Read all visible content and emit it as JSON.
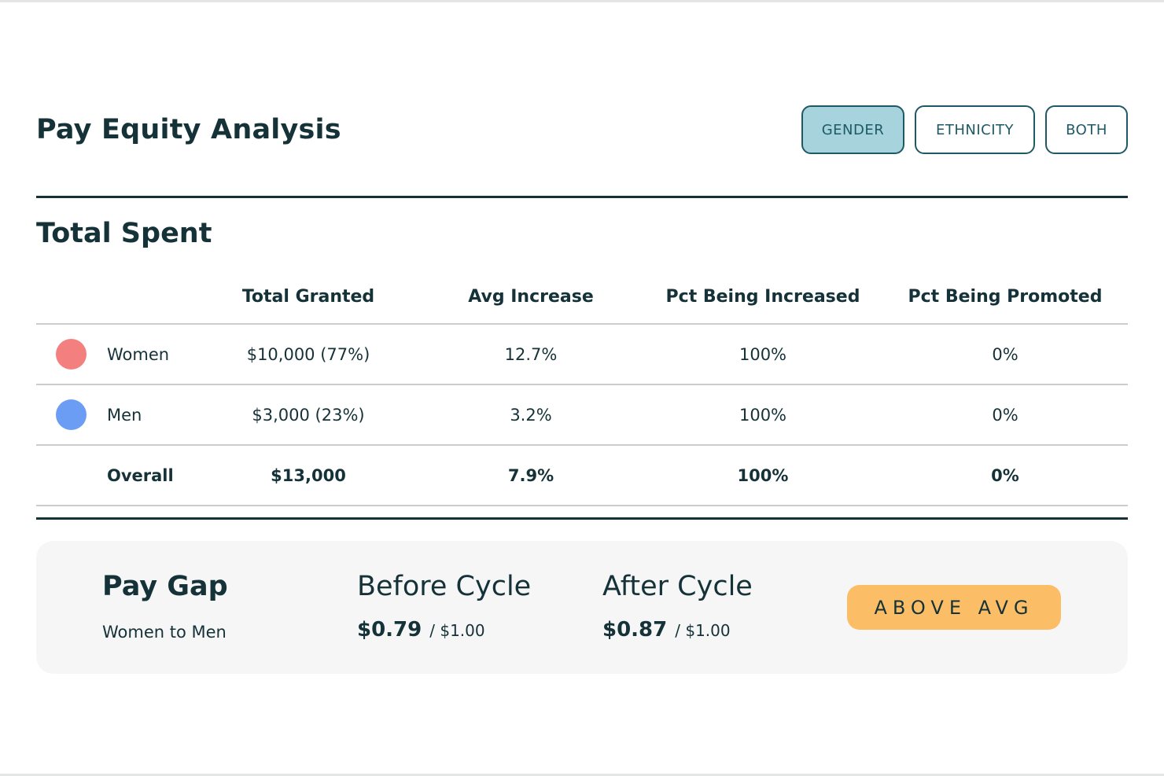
{
  "header": {
    "title": "Pay Equity Analysis",
    "filters": [
      {
        "label": "GENDER",
        "active": true
      },
      {
        "label": "ETHNICITY",
        "active": false
      },
      {
        "label": "BOTH",
        "active": false
      }
    ]
  },
  "total_spent": {
    "title": "Total Spent",
    "columns": [
      "Total Granted",
      "Avg Increase",
      "Pct Being Increased",
      "Pct Being Promoted"
    ],
    "rows": [
      {
        "label": "Women",
        "color": "#f47f7f",
        "total_granted": "$10,000 (77%)",
        "avg_increase": "12.7%",
        "pct_increased": "100%",
        "pct_promoted": "0%"
      },
      {
        "label": "Men",
        "color": "#6c9df5",
        "total_granted": "$3,000 (23%)",
        "avg_increase": "3.2%",
        "pct_increased": "100%",
        "pct_promoted": "0%"
      },
      {
        "label": "Overall",
        "total_granted": "$13,000",
        "avg_increase": "7.9%",
        "pct_increased": "100%",
        "pct_promoted": "0%"
      }
    ]
  },
  "pay_gap": {
    "title": "Pay Gap",
    "subtitle": "Women to Men",
    "before": {
      "title": "Before Cycle",
      "value": "$0.79",
      "base": "/ $1.00"
    },
    "after": {
      "title": "After Cycle",
      "value": "$0.87",
      "base": "/ $1.00"
    },
    "badge": "ABOVE AVG",
    "badge_color": "#fbbe66"
  },
  "colors": {
    "text": "#153238",
    "accent": "#1e5a66",
    "active_filter_bg": "#a7d3dd"
  }
}
